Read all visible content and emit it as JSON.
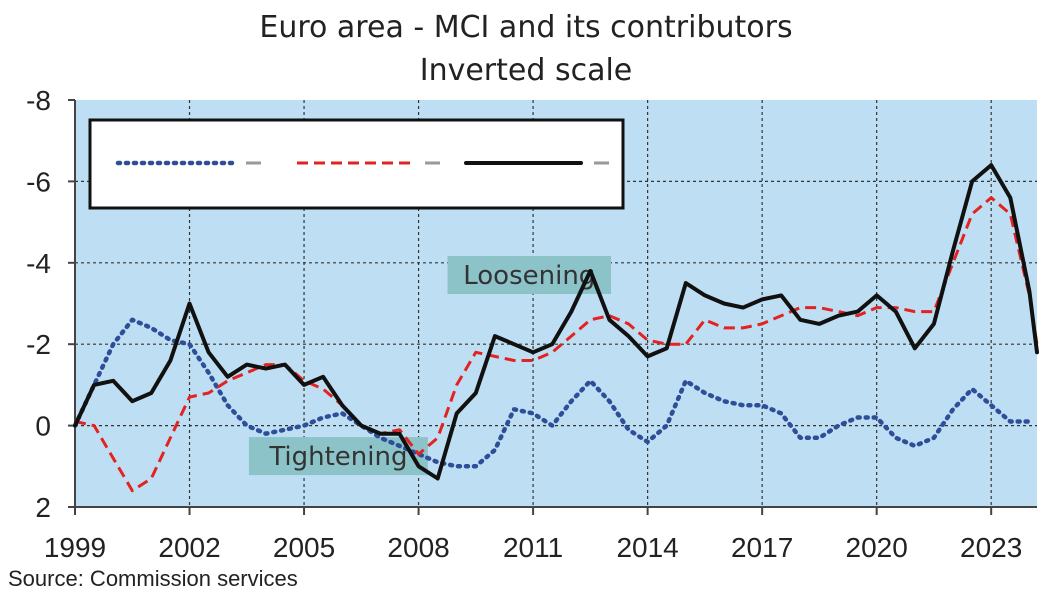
{
  "chart_data": {
    "type": "line",
    "title": "Euro area - MCI and its contributors",
    "subtitle": "Inverted scale",
    "source": "Source: Commission services",
    "ylim": [
      -8,
      2
    ],
    "y_inverted": true,
    "y_ticks": [
      -8,
      -6,
      -4,
      -2,
      0,
      2
    ],
    "x_range": [
      1999,
      2024.2
    ],
    "x_ticks": [
      "1999",
      "2002",
      "2005",
      "2008",
      "2011",
      "2014",
      "2017",
      "2020",
      "2023"
    ],
    "grid": true,
    "plot_background": "#bedff3",
    "legend_placement": "top-left",
    "annotations": [
      {
        "text": "Loosening",
        "x": 2010.9,
        "y": -3.7
      },
      {
        "text": "Tightening",
        "x": 2005.9,
        "y": 0.75
      }
    ],
    "series": [
      {
        "name": "",
        "style": "dotted",
        "color": "#2e4e99",
        "x": [
          1999.0,
          1999.5,
          2000.0,
          2000.5,
          2001.0,
          2001.5,
          2002.0,
          2002.5,
          2003.0,
          2003.5,
          2004.0,
          2004.5,
          2005.0,
          2005.5,
          2006.0,
          2006.5,
          2007.0,
          2007.5,
          2008.0,
          2008.5,
          2009.0,
          2009.5,
          2010.0,
          2010.5,
          2011.0,
          2011.5,
          2012.0,
          2012.5,
          2013.0,
          2013.5,
          2014.0,
          2014.5,
          2015.0,
          2015.5,
          2016.0,
          2016.5,
          2017.0,
          2017.5,
          2018.0,
          2018.5,
          2019.0,
          2019.5,
          2020.0,
          2020.5,
          2021.0,
          2021.5,
          2022.0,
          2022.5,
          2023.0,
          2023.5,
          2024.0
        ],
        "y": [
          0.0,
          -1.0,
          -2.0,
          -2.6,
          -2.4,
          -2.1,
          -2.0,
          -1.3,
          -0.5,
          0.0,
          0.2,
          0.1,
          0.0,
          -0.2,
          -0.3,
          0.0,
          0.3,
          0.5,
          0.7,
          0.9,
          1.0,
          1.0,
          0.6,
          -0.4,
          -0.3,
          0.0,
          -0.6,
          -1.1,
          -0.6,
          0.1,
          0.4,
          0.0,
          -1.1,
          -0.8,
          -0.6,
          -0.5,
          -0.5,
          -0.3,
          0.3,
          0.3,
          0.0,
          -0.2,
          -0.2,
          0.3,
          0.5,
          0.3,
          -0.4,
          -0.9,
          -0.5,
          -0.1,
          -0.1
        ]
      },
      {
        "name": "",
        "style": "dashed",
        "color": "#e32222",
        "x": [
          1999.0,
          1999.5,
          2000.0,
          2000.5,
          2001.0,
          2001.5,
          2002.0,
          2002.5,
          2003.0,
          2003.5,
          2004.0,
          2004.5,
          2005.0,
          2005.5,
          2006.0,
          2006.5,
          2007.0,
          2007.5,
          2008.0,
          2008.5,
          2009.0,
          2009.5,
          2010.0,
          2010.5,
          2011.0,
          2011.5,
          2012.0,
          2012.5,
          2013.0,
          2013.5,
          2014.0,
          2014.5,
          2015.0,
          2015.5,
          2016.0,
          2016.5,
          2017.0,
          2017.5,
          2018.0,
          2018.5,
          2019.0,
          2019.5,
          2020.0,
          2020.5,
          2021.0,
          2021.5,
          2022.0,
          2022.5,
          2023.0,
          2023.5,
          2024.0,
          2024.2
        ],
        "y": [
          -0.1,
          0.0,
          0.8,
          1.6,
          1.3,
          0.3,
          -0.7,
          -0.8,
          -1.1,
          -1.3,
          -1.5,
          -1.5,
          -1.1,
          -0.9,
          -0.5,
          0.0,
          0.2,
          0.1,
          0.7,
          0.3,
          -1.0,
          -1.8,
          -1.7,
          -1.6,
          -1.6,
          -1.8,
          -2.2,
          -2.6,
          -2.7,
          -2.5,
          -2.1,
          -2.0,
          -2.0,
          -2.6,
          -2.4,
          -2.4,
          -2.5,
          -2.7,
          -2.9,
          -2.9,
          -2.8,
          -2.7,
          -2.9,
          -2.9,
          -2.8,
          -2.8,
          -4.0,
          -5.2,
          -5.6,
          -5.2,
          -3.2,
          -2.0
        ]
      },
      {
        "name": "",
        "style": "solid",
        "color": "#111111",
        "x": [
          1999.0,
          1999.5,
          2000.0,
          2000.5,
          2001.0,
          2001.5,
          2002.0,
          2002.5,
          2003.0,
          2003.5,
          2004.0,
          2004.5,
          2005.0,
          2005.5,
          2006.0,
          2006.5,
          2007.0,
          2007.5,
          2008.0,
          2008.5,
          2009.0,
          2009.5,
          2010.0,
          2010.5,
          2011.0,
          2011.5,
          2012.0,
          2012.5,
          2013.0,
          2013.5,
          2014.0,
          2014.5,
          2015.0,
          2015.5,
          2016.0,
          2016.5,
          2017.0,
          2017.5,
          2018.0,
          2018.5,
          2019.0,
          2019.5,
          2020.0,
          2020.5,
          2021.0,
          2021.5,
          2022.0,
          2022.5,
          2023.0,
          2023.5,
          2024.0,
          2024.2
        ],
        "y": [
          0.0,
          -1.0,
          -1.1,
          -0.6,
          -0.8,
          -1.6,
          -3.0,
          -1.8,
          -1.2,
          -1.5,
          -1.4,
          -1.5,
          -1.0,
          -1.2,
          -0.5,
          0.0,
          0.2,
          0.2,
          1.0,
          1.3,
          -0.3,
          -0.8,
          -2.2,
          -2.0,
          -1.8,
          -2.0,
          -2.8,
          -3.8,
          -2.6,
          -2.2,
          -1.7,
          -1.9,
          -3.5,
          -3.2,
          -3.0,
          -2.9,
          -3.1,
          -3.2,
          -2.6,
          -2.5,
          -2.7,
          -2.8,
          -3.2,
          -2.8,
          -1.9,
          -2.5,
          -4.3,
          -6.0,
          -6.4,
          -5.6,
          -3.3,
          -1.8
        ]
      }
    ]
  }
}
